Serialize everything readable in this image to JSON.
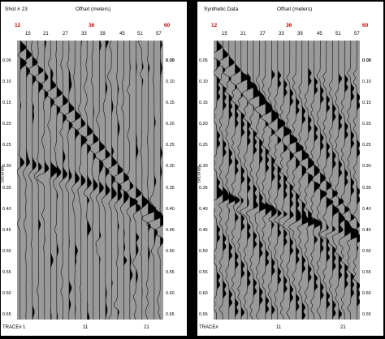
{
  "left": {
    "title": "Shot # 23",
    "offset_title": "Offset (meters)",
    "red_ticks": [
      "12",
      "36",
      "60"
    ],
    "top_ticks": [
      "15",
      "21",
      "27",
      "33",
      "39",
      "45",
      "51",
      "57"
    ],
    "y_ticks_left": [
      "0.05",
      "0.10",
      "0.15",
      "0.20",
      "0.25",
      "0.30",
      "0.35",
      "0.40",
      "0.45",
      "0.50",
      "0.55",
      "0.60",
      "0.65"
    ],
    "y_ticks_right": [
      "0.05",
      "0.10",
      "0.15",
      "0.20",
      "0.25",
      "0.30",
      "0.35",
      "0.40",
      "0.45",
      "0.50",
      "0.55",
      "0.60",
      "0.65"
    ],
    "y_ticks_right_top": "0.00",
    "y_label": "Seconds",
    "trace_label": "TRACE#",
    "trace_ticks": [
      "1",
      "11",
      "21"
    ]
  },
  "right": {
    "title": "Synthetic Data",
    "offset_title": "Offset (meters)",
    "red_ticks": [
      "12",
      "36",
      "60"
    ],
    "top_ticks": [
      "15",
      "21",
      "27",
      "33",
      "39",
      "45",
      "51",
      "57"
    ],
    "y_ticks_left": [
      "0.05",
      "0.10",
      "0.15",
      "0.20",
      "0.25",
      "0.30",
      "0.35",
      "0.40",
      "0.45",
      "0.50",
      "0.55",
      "0.60",
      "0.65"
    ],
    "y_ticks_right": [
      "0.05",
      "0.10",
      "0.15",
      "0.20",
      "0.25",
      "0.30",
      "0.35",
      "0.40",
      "0.45",
      "0.50",
      "0.55",
      "0.60",
      "0.65"
    ],
    "y_ticks_right_top": "0.00",
    "y_label": "Seconds",
    "trace_label": "TRACE#",
    "trace_ticks": [
      "1",
      "11",
      "21"
    ]
  }
}
